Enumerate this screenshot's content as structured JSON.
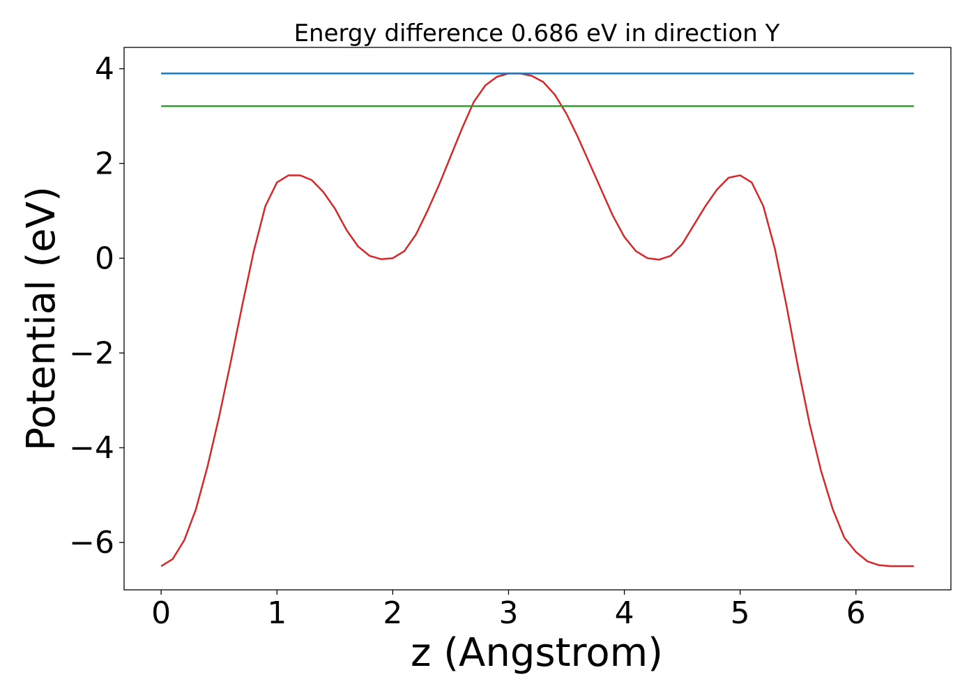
{
  "chart_data": {
    "type": "line",
    "title": "Energy difference 0.686 eV in direction Y",
    "xlabel": "z (Angstrom)",
    "ylabel": "Potential (eV)",
    "xlim": [
      -0.32,
      6.82
    ],
    "ylim": [
      -7.0,
      4.45
    ],
    "xticks": [
      0,
      1,
      2,
      3,
      4,
      5,
      6
    ],
    "xtick_labels": [
      "0",
      "1",
      "2",
      "3",
      "4",
      "5",
      "6"
    ],
    "yticks": [
      -6,
      -4,
      -2,
      0,
      2,
      4
    ],
    "ytick_labels": [
      "−6",
      "−4",
      "−2",
      "0",
      "2",
      "4"
    ],
    "grid": false,
    "series": [
      {
        "color": "#d62728",
        "x": [
          0.0,
          0.1,
          0.2,
          0.3,
          0.4,
          0.5,
          0.6,
          0.7,
          0.8,
          0.9,
          1.0,
          1.1,
          1.2,
          1.3,
          1.4,
          1.5,
          1.6,
          1.7,
          1.8,
          1.9,
          2.0,
          2.1,
          2.2,
          2.3,
          2.4,
          2.5,
          2.6,
          2.7,
          2.8,
          2.9,
          3.0,
          3.1,
          3.2,
          3.3,
          3.4,
          3.5,
          3.6,
          3.7,
          3.8,
          3.9,
          4.0,
          4.1,
          4.2,
          4.3,
          4.4,
          4.5,
          4.6,
          4.7,
          4.8,
          4.9,
          5.0,
          5.1,
          5.2,
          5.3,
          5.4,
          5.5,
          5.6,
          5.7,
          5.8,
          5.9,
          6.0,
          6.1,
          6.2,
          6.3,
          6.4,
          6.5
        ],
        "y": [
          -6.5,
          -6.35,
          -5.95,
          -5.3,
          -4.4,
          -3.35,
          -2.2,
          -1.0,
          0.15,
          1.1,
          1.6,
          1.75,
          1.75,
          1.65,
          1.4,
          1.05,
          0.6,
          0.25,
          0.05,
          -0.02,
          0.0,
          0.15,
          0.5,
          1.0,
          1.55,
          2.15,
          2.75,
          3.3,
          3.65,
          3.83,
          3.9,
          3.9,
          3.85,
          3.72,
          3.45,
          3.05,
          2.55,
          2.0,
          1.45,
          0.9,
          0.45,
          0.15,
          0.0,
          -0.03,
          0.05,
          0.3,
          0.7,
          1.1,
          1.45,
          1.7,
          1.75,
          1.6,
          1.1,
          0.2,
          -1.0,
          -2.3,
          -3.5,
          -4.5,
          -5.3,
          -5.9,
          -6.2,
          -6.4,
          -6.48,
          -6.5,
          -6.5,
          -6.5
        ]
      },
      {
        "color": "#1f77b4",
        "x": [
          0.0,
          6.5
        ],
        "y": [
          3.9,
          3.9
        ]
      },
      {
        "color": "#2ca02c",
        "x": [
          0.0,
          6.5
        ],
        "y": [
          3.21,
          3.21
        ]
      }
    ]
  }
}
